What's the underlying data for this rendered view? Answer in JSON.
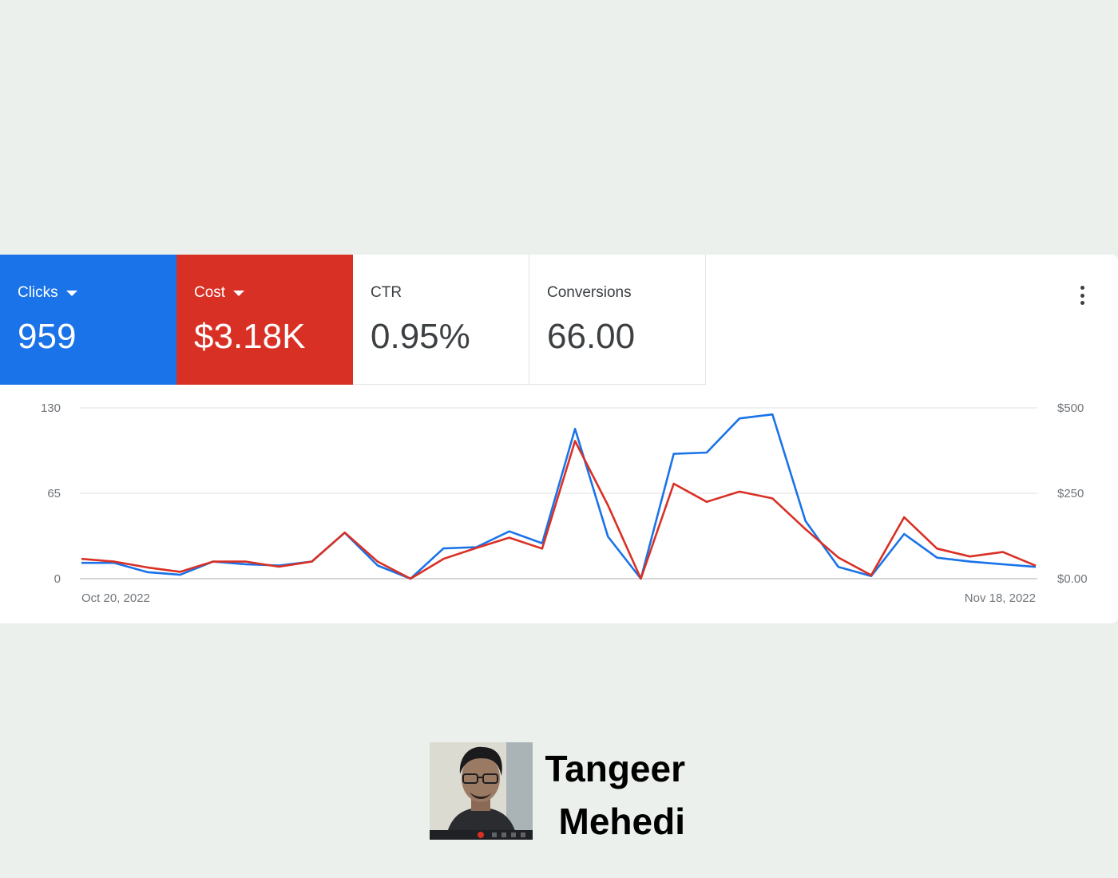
{
  "tiles": [
    {
      "label": "Clicks",
      "value": "959",
      "color": "#1a73e8"
    },
    {
      "label": "Cost",
      "value": "$3.18K",
      "color": "#d93025"
    },
    {
      "label": "CTR",
      "value": "0.95%"
    },
    {
      "label": "Conversions",
      "value": "66.00"
    }
  ],
  "more_icon": "more-vert-icon",
  "chart_data": {
    "type": "line",
    "x_start_label": "Oct 20, 2022",
    "x_end_label": "Nov 18, 2022",
    "y_left_ticks": [
      "0",
      "65",
      "130"
    ],
    "y_right_ticks": [
      "$0.00",
      "$250",
      "$500"
    ],
    "ylim_left": [
      0,
      130
    ],
    "ylim_right": [
      0,
      500
    ],
    "grid": true,
    "series": [
      {
        "axis": "left",
        "color": "#1a73e8",
        "values": [
          12,
          12,
          5,
          3,
          13,
          11,
          10,
          13,
          35,
          10,
          0,
          23,
          24,
          36,
          27,
          114,
          32,
          0,
          95,
          96,
          122,
          125,
          44,
          9,
          2,
          34,
          16,
          13,
          11,
          9
        ]
      },
      {
        "axis": "right",
        "color": "#d93025",
        "values": [
          58,
          50,
          33,
          20,
          50,
          50,
          35,
          50,
          135,
          50,
          0,
          58,
          90,
          120,
          88,
          403,
          215,
          0,
          278,
          225,
          255,
          235,
          145,
          62,
          10,
          180,
          88,
          65,
          78,
          38
        ]
      }
    ]
  },
  "person": {
    "name_line1": "Tangeer",
    "name_line2": "Mehedi",
    "photo_icon": "person-photo"
  }
}
